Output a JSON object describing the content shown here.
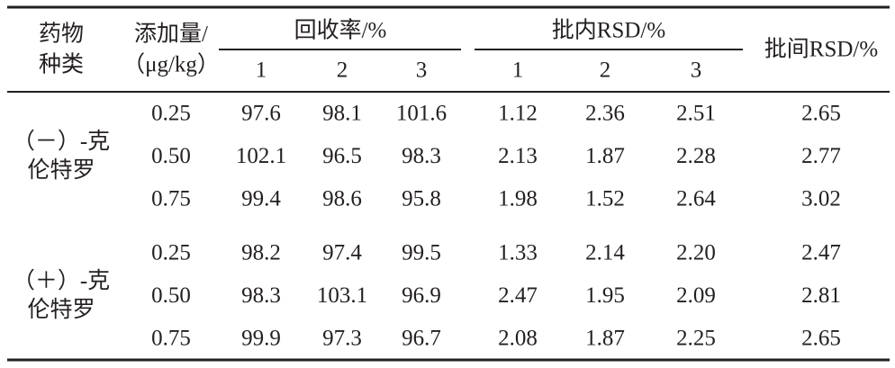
{
  "table": {
    "header": {
      "drug": [
        "药物",
        "种类"
      ],
      "amount": [
        "添加量/",
        "（μg/kg）"
      ],
      "recovery": "回收率/%",
      "intra": "批内RSD/%",
      "inter": "批间RSD/%",
      "sub": [
        "1",
        "2",
        "3",
        "1",
        "2",
        "3"
      ]
    },
    "groups": [
      {
        "drug": [
          "（－）-克",
          "伦特罗"
        ],
        "rows": [
          [
            "0.25",
            "97.6",
            "98.1",
            "101.6",
            "1.12",
            "2.36",
            "2.51",
            "2.65"
          ],
          [
            "0.50",
            "102.1",
            "96.5",
            "98.3",
            "2.13",
            "1.87",
            "2.28",
            "2.77"
          ],
          [
            "0.75",
            "99.4",
            "98.6",
            "95.8",
            "1.98",
            "1.52",
            "2.64",
            "3.02"
          ]
        ]
      },
      {
        "drug": [
          "（＋）-克",
          "伦特罗"
        ],
        "rows": [
          [
            "0.25",
            "98.2",
            "97.4",
            "99.5",
            "1.33",
            "2.14",
            "2.20",
            "2.47"
          ],
          [
            "0.50",
            "98.3",
            "103.1",
            "96.9",
            "2.47",
            "1.95",
            "2.09",
            "2.81"
          ],
          [
            "0.75",
            "99.9",
            "97.3",
            "96.7",
            "2.08",
            "1.87",
            "2.25",
            "2.65"
          ]
        ]
      }
    ]
  }
}
